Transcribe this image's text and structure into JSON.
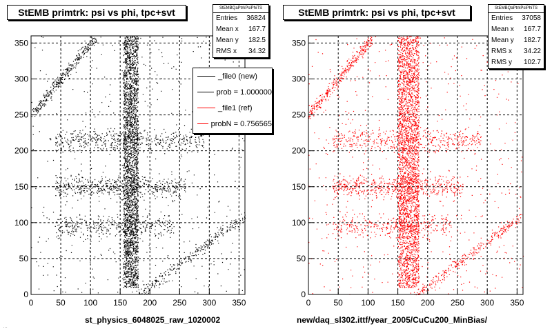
{
  "colors": {
    "file0": "#000000",
    "file1": "#ff0000",
    "grid": "#000000"
  },
  "footer_text": "…",
  "chart_data": [
    {
      "type": "scatter",
      "title": "StEMB primtrk: psi vs phi, tpc+svt",
      "xlabel": "st_physics_6048025_raw_1020002",
      "ylabel": "",
      "xlim": [
        0,
        360
      ],
      "ylim": [
        0,
        360
      ],
      "x_ticks": [
        0,
        50,
        100,
        150,
        200,
        250,
        300,
        350
      ],
      "y_ticks": [
        0,
        50,
        100,
        150,
        200,
        250,
        300,
        350
      ],
      "grid": true,
      "marker_color": "#000000",
      "stats": {
        "header": "StEMBQaPtrkPsiPhiTS",
        "rows": [
          {
            "label": "Entries",
            "value": "36824"
          },
          {
            "label": "Mean x",
            "value": "167.7"
          },
          {
            "label": "Mean y",
            "value": "182.5"
          },
          {
            "label": "RMS x",
            "value": "34.32"
          }
        ]
      },
      "legend": [
        {
          "label": "_file0 (new)",
          "color": "#000000"
        },
        {
          "label": "prob = 1.000000",
          "color": "#000000"
        },
        {
          "label": "_file1 (ref)",
          "color": "#ff0000"
        },
        {
          "label": "probN = 0.756565",
          "color": "#ff0000"
        }
      ],
      "density_features": [
        {
          "kind": "vertical_band",
          "x_range": [
            155,
            180
          ],
          "y_range": [
            10,
            360
          ],
          "weight": 0.55
        },
        {
          "kind": "diagonal_band",
          "from": [
            0,
            250
          ],
          "to": [
            110,
            360
          ],
          "weight": 0.06
        },
        {
          "kind": "diagonal_band",
          "from": [
            180,
            0
          ],
          "to": [
            360,
            110
          ],
          "weight": 0.05
        },
        {
          "kind": "horizontal_band",
          "x_range": [
            40,
            290
          ],
          "y_center": 215,
          "weight": 0.09
        },
        {
          "kind": "horizontal_band",
          "x_range": [
            40,
            260
          ],
          "y_center": 150,
          "weight": 0.1
        },
        {
          "kind": "horizontal_band",
          "x_range": [
            40,
            240
          ],
          "y_center": 95,
          "weight": 0.06
        },
        {
          "kind": "uniform",
          "weight": 0.09
        }
      ]
    },
    {
      "type": "scatter",
      "title": "StEMB primtrk: psi vs phi, tpc+svt",
      "xlabel": "new/daq_sl302.ittf/year_2005/CuCu200_MinBias/",
      "ylabel": "",
      "xlim": [
        0,
        360
      ],
      "ylim": [
        0,
        360
      ],
      "x_ticks": [
        0,
        50,
        100,
        150,
        200,
        250,
        300,
        350
      ],
      "y_ticks": [
        0,
        50,
        100,
        150,
        200,
        250,
        300,
        350
      ],
      "grid": true,
      "marker_color": "#ff0000",
      "stats": {
        "header": "StEMBQaPtrkPsiPhiTS",
        "rows": [
          {
            "label": "Entries",
            "value": "37058"
          },
          {
            "label": "Mean x",
            "value": "167.7"
          },
          {
            "label": "Mean y",
            "value": "182.7"
          },
          {
            "label": "RMS x",
            "value": "34.22"
          },
          {
            "label": "RMS y",
            "value": "102.7"
          }
        ]
      },
      "legend": [],
      "density_features": [
        {
          "kind": "vertical_band",
          "x_range": [
            150,
            185
          ],
          "y_range": [
            10,
            360
          ],
          "weight": 0.55
        },
        {
          "kind": "diagonal_band",
          "from": [
            0,
            250
          ],
          "to": [
            110,
            360
          ],
          "weight": 0.06
        },
        {
          "kind": "diagonal_band",
          "from": [
            180,
            0
          ],
          "to": [
            360,
            110
          ],
          "weight": 0.05
        },
        {
          "kind": "horizontal_band",
          "x_range": [
            40,
            290
          ],
          "y_center": 215,
          "weight": 0.09
        },
        {
          "kind": "horizontal_band",
          "x_range": [
            40,
            260
          ],
          "y_center": 150,
          "weight": 0.1
        },
        {
          "kind": "horizontal_band",
          "x_range": [
            40,
            240
          ],
          "y_center": 95,
          "weight": 0.06
        },
        {
          "kind": "uniform",
          "weight": 0.09
        }
      ]
    }
  ]
}
